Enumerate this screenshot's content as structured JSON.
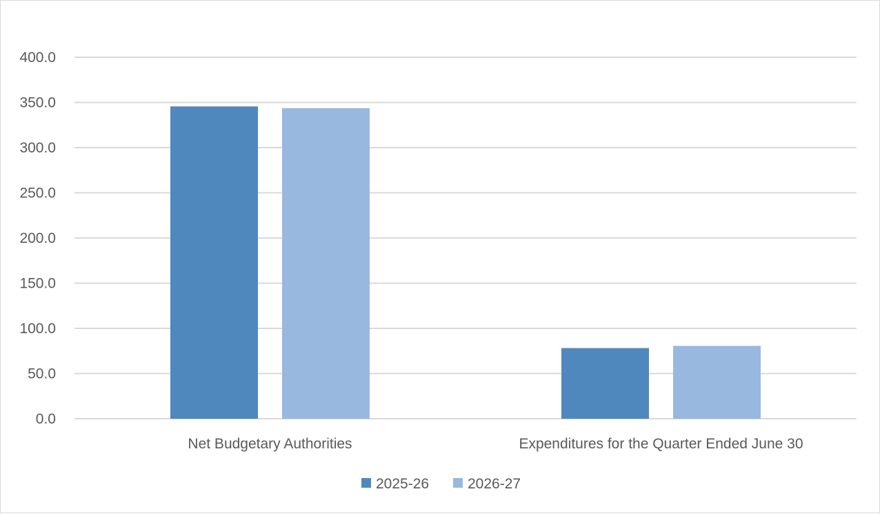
{
  "chart_data": {
    "type": "bar",
    "title": "",
    "xlabel": "",
    "ylabel": "",
    "categories": [
      "Net Budgetary Authorities",
      "Expenditures for the Quarter Ended June 30"
    ],
    "series": [
      {
        "name": "2025-26",
        "values": [
          345.6,
          78.2
        ],
        "color": "#4f88bd"
      },
      {
        "name": "2026-27",
        "values": [
          343.7,
          80.6
        ],
        "color": "#98b8df"
      }
    ],
    "ylim": [
      0,
      400
    ],
    "yticks": [
      "0.0",
      "50.0",
      "100.0",
      "150.0",
      "200.0",
      "250.0",
      "300.0",
      "350.0",
      "400.0"
    ],
    "grid": true,
    "legend_position": "bottom"
  }
}
